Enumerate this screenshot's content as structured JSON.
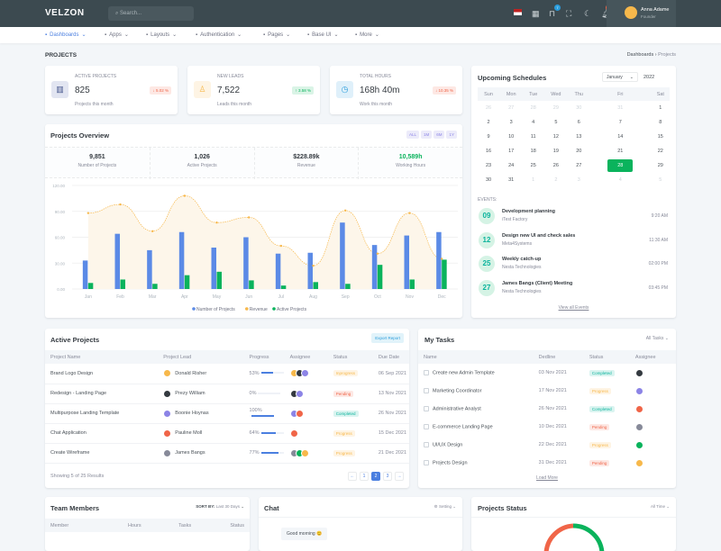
{
  "header": {
    "logo": "velzon",
    "search_placeholder": "Search...",
    "cart_count": "7",
    "notif_count": "3",
    "user_name": "Anna Adame",
    "user_role": "Founder"
  },
  "nav": [
    "Dashboards",
    "Apps",
    "Layouts",
    "Authentication",
    "Pages",
    "Base UI",
    "More"
  ],
  "page": {
    "title": "PROJECTS",
    "breadcrumb": [
      "Dashboards",
      "Projects"
    ]
  },
  "stats": [
    {
      "label": "ACTIVE PROJECTS",
      "value": "825",
      "change": "5.02 %",
      "dir": "down",
      "sub": "Projects this month",
      "color": "#405189",
      "bg": "#e2e5f1"
    },
    {
      "label": "NEW LEADS",
      "value": "7,522",
      "change": "3.58 %",
      "dir": "up",
      "sub": "Leads this month",
      "color": "#f7b84b",
      "bg": "#fef4e4"
    },
    {
      "label": "TOTAL HOURS",
      "value": "168h 40m",
      "change": "10.35 %",
      "dir": "down",
      "sub": "Work this month",
      "color": "#299cdb",
      "bg": "#dff0fa"
    }
  ],
  "overview": {
    "title": "Projects Overview",
    "filters": [
      "ALL",
      "1M",
      "6M",
      "1Y"
    ],
    "kpis": [
      {
        "value": "9,851",
        "label": "Number of Projects"
      },
      {
        "value": "1,026",
        "label": "Active Projects"
      },
      {
        "value": "$228.89k",
        "label": "Revenue"
      },
      {
        "value": "10,589h",
        "label": "Working Hours"
      }
    ]
  },
  "chart_data": {
    "type": "bar+area",
    "categories": [
      "Jan",
      "Feb",
      "Mar",
      "Apr",
      "May",
      "Jun",
      "Jul",
      "Aug",
      "Sep",
      "Oct",
      "Nov",
      "Dec"
    ],
    "ylim": [
      0,
      120
    ],
    "yticks": [
      "0.00",
      "30.00",
      "60.00",
      "90.00",
      "120.00"
    ],
    "grid": true,
    "legend": "bottom",
    "series": [
      {
        "name": "Number of Projects",
        "type": "bar",
        "color": "#5b8ae6",
        "values": [
          33,
          64,
          45,
          66,
          48,
          60,
          41,
          42,
          77,
          51,
          62,
          66
        ]
      },
      {
        "name": "Revenue",
        "type": "area",
        "color": "#f7b84b",
        "values": [
          88,
          98,
          67,
          108,
          77,
          83,
          50,
          27,
          91,
          41,
          88,
          35
        ]
      },
      {
        "name": "Active Projects",
        "type": "bar",
        "color": "#0ab35c",
        "values": [
          7,
          11,
          6,
          16,
          20,
          10,
          4,
          8,
          6,
          28,
          11,
          34
        ]
      }
    ]
  },
  "schedule": {
    "title": "Upcoming Schedules",
    "month": "January",
    "year": "2022",
    "days": [
      "Sun",
      "Mon",
      "Tue",
      "Wed",
      "Thu",
      "Fri",
      "Sat"
    ],
    "weeks": [
      [
        "26",
        "27",
        "28",
        "29",
        "30",
        "31",
        "1"
      ],
      [
        "2",
        "3",
        "4",
        "5",
        "6",
        "7",
        "8"
      ],
      [
        "9",
        "10",
        "11",
        "12",
        "13",
        "14",
        "15"
      ],
      [
        "16",
        "17",
        "18",
        "19",
        "20",
        "21",
        "22"
      ],
      [
        "23",
        "24",
        "25",
        "26",
        "27",
        "28",
        "29"
      ],
      [
        "30",
        "31",
        "1",
        "2",
        "3",
        "4",
        "5"
      ]
    ],
    "selected": "28",
    "events_label": "EVENTS:",
    "events": [
      {
        "day": "09",
        "title": "Development planning",
        "org": "iTest Factory",
        "time": "9:20 AM"
      },
      {
        "day": "12",
        "title": "Design new UI and check sales",
        "org": "Meta4Systems",
        "time": "11:30 AM"
      },
      {
        "day": "25",
        "title": "Weekly catch-up",
        "org": "Nesta Technologies",
        "time": "02:00 PM"
      },
      {
        "day": "27",
        "title": "James Bangs (Client) Meeting",
        "org": "Nesta Technologies",
        "time": "03:45 PM"
      }
    ],
    "view_all": "View all Events"
  },
  "active_projects": {
    "title": "Active Projects",
    "export": "Export Report",
    "columns": [
      "Project Name",
      "Project Lead",
      "Progress",
      "Assignee",
      "Status",
      "Due Date"
    ],
    "rows": [
      {
        "name": "Brand Logo Design",
        "lead": "Donald Risher",
        "progress": "53%",
        "pct": 53,
        "assignees": 3,
        "status": "Inprogress",
        "due": "06 Sep 2021"
      },
      {
        "name": "Redesign - Landing Page",
        "lead": "Prezy William",
        "progress": "0%",
        "pct": 0,
        "assignees": 2,
        "status": "Pending",
        "due": "13 Nov 2021"
      },
      {
        "name": "Multipurpose Landing Template",
        "lead": "Boonie Hoynas",
        "progress": "100%",
        "pct": 100,
        "assignees": 2,
        "status": "Completed",
        "due": "26 Nov 2021"
      },
      {
        "name": "Chat Application",
        "lead": "Pauline Moll",
        "progress": "64%",
        "pct": 64,
        "assignees": 1,
        "status": "Progress",
        "due": "15 Dec 2021"
      },
      {
        "name": "Create Wireframe",
        "lead": "James Bangs",
        "progress": "77%",
        "pct": 77,
        "assignees": 3,
        "status": "Progress",
        "due": "21 Dec 2021"
      }
    ],
    "showing": "Showing 5 of 25 Results",
    "pages": [
      "←",
      "1",
      "2",
      "3",
      "→"
    ],
    "current_page": "2"
  },
  "tasks": {
    "title": "My Tasks",
    "filter": "All Tasks",
    "columns": [
      "Name",
      "Dedline",
      "Status",
      "Assignee"
    ],
    "rows": [
      {
        "name": "Create new Admin Template",
        "date": "03 Nov 2021",
        "status": "Completed"
      },
      {
        "name": "Marketing Coordinator",
        "date": "17 Nov 2021",
        "status": "Progress"
      },
      {
        "name": "Administrative Analyst",
        "date": "26 Nov 2021",
        "status": "Completed"
      },
      {
        "name": "E-commerce Landing Page",
        "date": "10 Dec 2021",
        "status": "Pending"
      },
      {
        "name": "UI/UX Design",
        "date": "22 Dec 2021",
        "status": "Progress"
      },
      {
        "name": "Projects Design",
        "date": "31 Dec 2021",
        "status": "Pending"
      }
    ],
    "load_more": "Load More"
  },
  "team": {
    "title": "Team Members",
    "sort_label": "SORT BY:",
    "sort_value": "Last 30 Days",
    "columns": [
      "Member",
      "Hours",
      "Tasks",
      "Status"
    ]
  },
  "chat": {
    "title": "Chat",
    "setting": "Setting",
    "message": "Good morning 😊"
  },
  "status_card": {
    "title": "Projects Status",
    "filter": "All Time"
  }
}
